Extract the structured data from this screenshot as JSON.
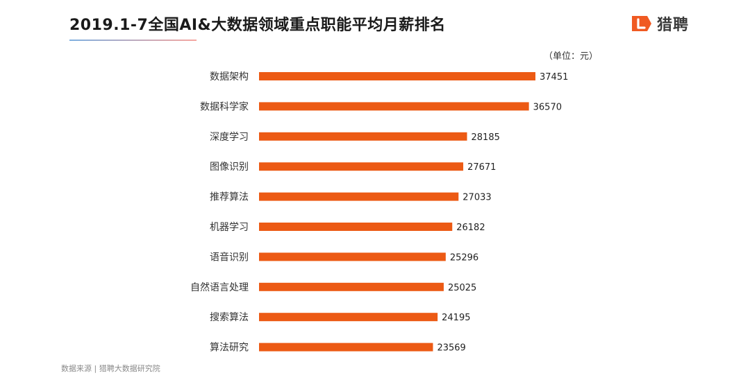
{
  "header": {
    "title": "2019.1-7全国AI&大数据领域重点职能平均月薪排名",
    "brand_name": "猎聘",
    "brand_icon": "liepin-logo-icon",
    "brand_color": "#f05a22"
  },
  "unit_note": "（单位：元）",
  "footer": {
    "source": "数据来源 | 猎聘大数据研究院"
  },
  "chart_data": {
    "type": "bar",
    "orientation": "horizontal",
    "title": "2019.1-7全国AI&大数据领域重点职能平均月薪排名",
    "xlabel": "",
    "ylabel": "",
    "categories": [
      "数据架构",
      "数据科学家",
      "深度学习",
      "图像识别",
      "推荐算法",
      "机器学习",
      "语音识别",
      "自然语言处理",
      "搜索算法",
      "算法研究"
    ],
    "values": [
      37451,
      36570,
      28185,
      27671,
      27033,
      26182,
      25296,
      25025,
      24195,
      23569
    ],
    "xlim": [
      0,
      37451
    ],
    "bar_color": "#ec5a14",
    "grid": false,
    "legend": "none",
    "data_labels": true
  }
}
